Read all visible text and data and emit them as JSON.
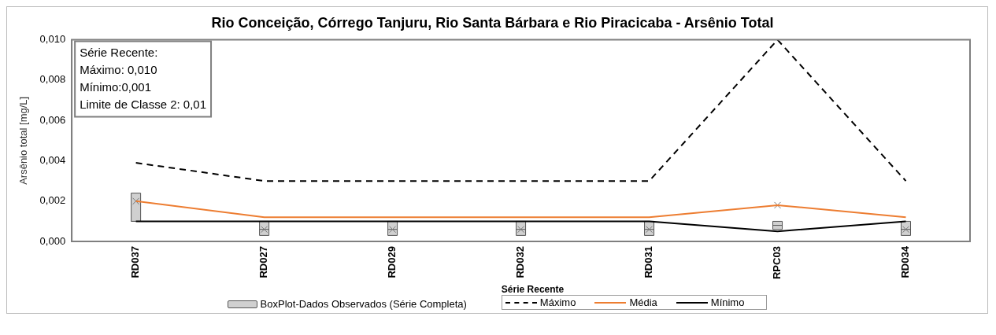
{
  "chart_data": {
    "type": "box",
    "title": "Rio Conceição, Córrego Tanjuru, Rio Santa Bárbara e Rio Piracicaba - Arsênio Total",
    "ylabel": "Arsênio total [mg/L]",
    "legend_title": "Série Recente",
    "legend": "bottom",
    "grid": false,
    "categories": [
      "RD037",
      "RD027",
      "RD029",
      "RD032",
      "RD031",
      "RPC03",
      "RD034"
    ],
    "ylim": [
      0,
      0.01
    ],
    "yticks": [
      {
        "value": 0,
        "label": "0,000"
      },
      {
        "value": 0.002,
        "label": "0,002"
      },
      {
        "value": 0.004,
        "label": "0,004"
      },
      {
        "value": 0.006,
        "label": "0,006"
      },
      {
        "value": 0.008,
        "label": "0,008"
      },
      {
        "value": 0.01,
        "label": "0,010"
      }
    ],
    "annotations": [
      "Série Recente:",
      "Máximo: 0,010",
      "Mínimo:0,001",
      "Limite de Classe 2: 0,01"
    ],
    "series": [
      {
        "name": "BoxPlot-Dados Observados (Série Completa)",
        "color": "#d0d0d0",
        "boxes": [
          {
            "low": 0.001,
            "q1": 0.001,
            "median": 0.001,
            "q3": 0.0024,
            "high": 0.0024,
            "mean": 0.002
          },
          {
            "low": 0.0003,
            "q1": 0.0003,
            "median": 0.0006,
            "q3": 0.001,
            "high": 0.001,
            "mean": 0.0006
          },
          {
            "low": 0.0003,
            "q1": 0.0003,
            "median": 0.0006,
            "q3": 0.001,
            "high": 0.001,
            "mean": 0.0006
          },
          {
            "low": 0.0003,
            "q1": 0.0003,
            "median": 0.0006,
            "q3": 0.001,
            "high": 0.001,
            "mean": 0.0006
          },
          {
            "low": 0.0003,
            "q1": 0.0003,
            "median": 0.0006,
            "q3": 0.001,
            "high": 0.001,
            "mean": 0.0006
          },
          {
            "low": 0.0006,
            "q1": 0.0006,
            "median": 0.0008,
            "q3": 0.001,
            "high": 0.001,
            "mean": 0.0018
          },
          {
            "low": 0.0003,
            "q1": 0.0003,
            "median": 0.0006,
            "q3": 0.001,
            "high": 0.001,
            "mean": 0.0006
          }
        ]
      },
      {
        "type": "line",
        "name": "Máximo",
        "color": "#000000",
        "line_style": "dashed",
        "values": [
          0.0039,
          0.003,
          0.003,
          0.003,
          0.003,
          0.01,
          0.003
        ]
      },
      {
        "type": "line",
        "name": "Média",
        "color": "#ed7d31",
        "line_style": "solid",
        "values": [
          0.002,
          0.0012,
          0.0012,
          0.0012,
          0.0012,
          0.0018,
          0.0012
        ]
      },
      {
        "type": "line",
        "name": "Mínimo",
        "color": "#000000",
        "line_style": "solid",
        "values": [
          0.001,
          0.001,
          0.001,
          0.001,
          0.001,
          0.0005,
          0.001
        ]
      }
    ]
  }
}
